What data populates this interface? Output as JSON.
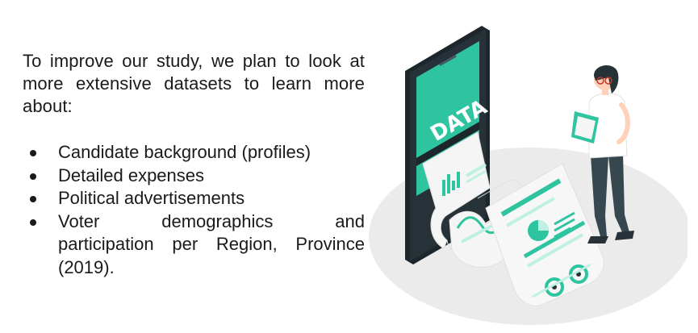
{
  "intro": "To improve our study, we plan to look at more extensive datasets to learn more about:",
  "bullets": [
    "Candidate background (profiles)",
    "Detailed expenses",
    "Political advertisements",
    "Voter demographics and",
    "participation per Region, Province (2019)."
  ],
  "illustration": {
    "screen_label": "DATA",
    "colors": {
      "accent": "#2ec4a0",
      "accent_light": "#bff0e3",
      "phone_body": "#263238",
      "floor": "#ebebeb",
      "paper": "#f5f5f5",
      "person_pants": "#37474f",
      "person_shirt": "#ffffff",
      "person_hair": "#263238"
    }
  }
}
